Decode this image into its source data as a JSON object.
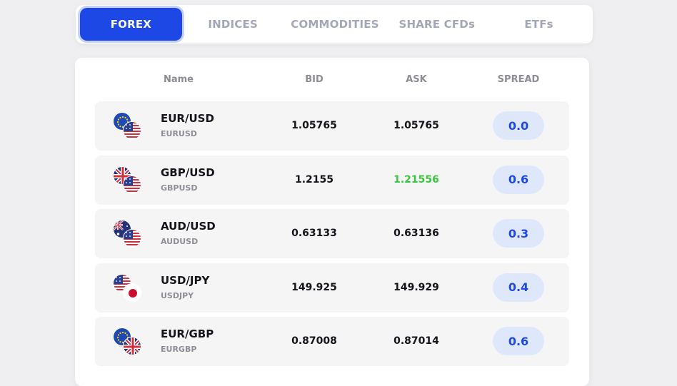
{
  "tabs": [
    "FOREX",
    "INDICES",
    "COMMODITIES",
    "SHARE CFDs",
    "ETFs"
  ],
  "active_tab": "FOREX",
  "table": {
    "headers": {
      "name": "Name",
      "bid": "BID",
      "ask": "ASK",
      "spread": "SPREAD"
    },
    "rows": [
      {
        "pair": "EUR/USD",
        "code": "EURUSD",
        "bid": "1.05765",
        "ask": "1.05765",
        "spread": "0.0",
        "flag1": "eu",
        "flag2": "us",
        "ask_color": "#14141a"
      },
      {
        "pair": "GBP/USD",
        "code": "GBPUSD",
        "bid": "1.2155",
        "ask": "1.21556",
        "spread": "0.6",
        "flag1": "uk",
        "flag2": "us",
        "ask_color": "#3cc541"
      },
      {
        "pair": "AUD/USD",
        "code": "AUDUSD",
        "bid": "0.63133",
        "ask": "0.63136",
        "spread": "0.3",
        "flag1": "au",
        "flag2": "us",
        "ask_color": "#14141a"
      },
      {
        "pair": "USD/JPY",
        "code": "USDJPY",
        "bid": "149.925",
        "ask": "149.929",
        "spread": "0.4",
        "flag1": "us",
        "flag2": "jp",
        "ask_color": "#14141a"
      },
      {
        "pair": "EUR/GBP",
        "code": "EURGBP",
        "bid": "0.87008",
        "ask": "0.87014",
        "spread": "0.6",
        "flag1": "eu",
        "flag2": "uk",
        "ask_color": "#14141a"
      }
    ]
  },
  "colors": {
    "accent": "#1d48e6",
    "price_up": "#3cc541",
    "spread_bg": "#dfe8fb"
  }
}
